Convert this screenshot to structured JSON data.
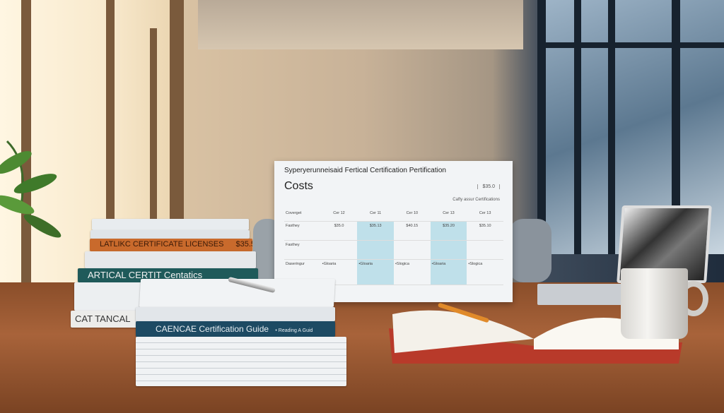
{
  "sign": {
    "heading": "Syperyerunneisaid Fertical Certification Pertification",
    "title": "Costs",
    "badge": "$35.0",
    "subtitle": "Cafty assur Certifications",
    "columns": [
      "Coverget",
      "Cer 12",
      "Cer 11",
      "Cer 10",
      "Cer 13",
      "Cer 13"
    ],
    "rows": [
      [
        "Fasthey",
        "$35.0",
        "$35.13",
        "$40.15",
        "$35.20",
        "$35.10"
      ],
      [
        "Fasthey",
        "",
        "",
        "",
        "",
        ""
      ],
      [
        "Daseringur",
        "•Gloaria",
        "•Gloaria",
        "•Slogica",
        "•Gloaria",
        "•Slogica"
      ]
    ],
    "highlight_color": "#bfe0ea"
  },
  "books": {
    "left_orange": "LATLIKC CERTIFICATE LICENSES",
    "left_orange_price": "$35.5",
    "left_green": "ARTICAL CERTIT Centatics",
    "left_bottom": "CAT TANCAL",
    "front_spine": "CAENCAE Certification Guide",
    "front_spine_sub": "• Reading A Guid"
  }
}
